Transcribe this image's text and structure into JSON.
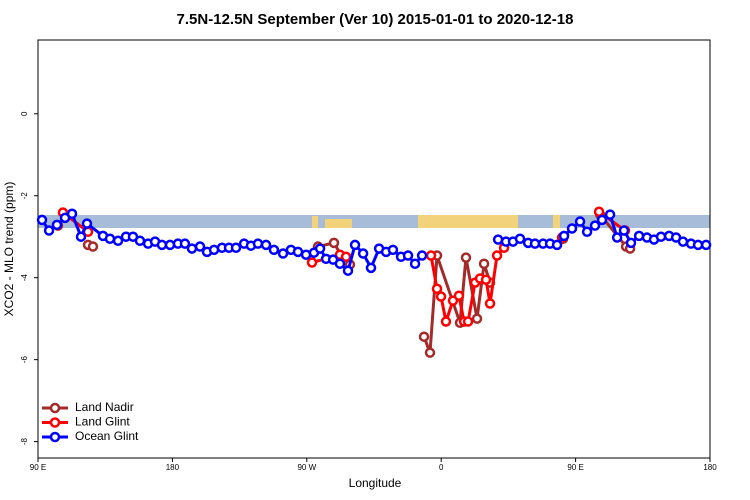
{
  "chart_data": {
    "type": "line",
    "title": "7.5N-12.5N September (Ver 10)   2015-01-01 to 2020-12-18",
    "x_label": "Longitude",
    "y_label": "XCO2 - MLO trend (ppm)",
    "xlim": [
      90,
      540
    ],
    "xticks": [
      {
        "value": 90,
        "label": "90 E"
      },
      180,
      {
        "value": 270,
        "label": "90 W"
      },
      {
        "value": 360,
        "label": "0"
      },
      {
        "value": 450,
        "label": "90 E"
      },
      {
        "value": 540,
        "label": "180"
      }
    ],
    "ylim": [
      -8.4,
      1.8
    ],
    "yticks": [
      0,
      -2,
      -4,
      -6,
      -8
    ],
    "legend": "bottom-left",
    "series": [
      {
        "name": "Land Nadir",
        "color": "#a52a2a",
        "x": [
          103.4,
          123.5,
          126.8,
          277.5,
          288.2,
          293.6,
          298.9,
          348.5,
          352.5,
          357.2,
          372.6,
          376.6,
          384.0,
          388.7,
          392.7,
          441.6,
          466.4,
          483.8,
          486.5
        ],
        "values": [
          -2.73,
          -3.2,
          -3.24,
          -3.24,
          -3.15,
          -3.49,
          -3.68,
          -5.44,
          -5.83,
          -3.46,
          -5.1,
          -3.51,
          -5.0,
          -3.66,
          -4.12,
          -3.05,
          -2.46,
          -3.24,
          -3.29
        ]
      },
      {
        "name": "Land Glint",
        "color": "#ff0000",
        "x": [
          106.7,
          123.5,
          273.5,
          292.2,
          296.3,
          353.2,
          357.2,
          359.9,
          363.2,
          367.9,
          371.9,
          375.3,
          378.0,
          382.7,
          386.0,
          390.0,
          392.7,
          397.4,
          402.1,
          440.9,
          465.7,
          483.1
        ],
        "values": [
          -2.41,
          -2.88,
          -3.63,
          -3.44,
          -3.49,
          -3.46,
          -4.27,
          -4.46,
          -5.07,
          -4.56,
          -4.44,
          -5.07,
          -5.07,
          -4.12,
          -4.02,
          -4.05,
          -4.63,
          -3.46,
          -3.27,
          -3.02,
          -2.39,
          -2.85
        ]
      },
      {
        "name": "Ocean Glint",
        "color": "#0000ff",
        "x": [
          92.7,
          97.4,
          102.7,
          108.1,
          112.8,
          118.8,
          122.8,
          133.5,
          138.2,
          143.6,
          148.9,
          153.6,
          158.3,
          163.7,
          168.4,
          173.0,
          178.4,
          183.7,
          188.4,
          193.1,
          198.5,
          203.2,
          207.9,
          213.2,
          217.9,
          222.6,
          228.0,
          232.6,
          237.3,
          242.7,
          248.0,
          254.1,
          259.4,
          264.1,
          269.5,
          274.8,
          278.9,
          282.9,
          287.6,
          292.2,
          297.6,
          302.3,
          307.7,
          313.0,
          318.4,
          323.1,
          327.7,
          333.1,
          337.8,
          342.5,
          347.2,
          398.1,
          403.4,
          408.1,
          412.8,
          418.2,
          422.8,
          428.2,
          432.9,
          437.6,
          442.3,
          447.6,
          453.0,
          457.7,
          463.0,
          467.7,
          473.1,
          477.8,
          482.4,
          487.1,
          492.5,
          497.8,
          502.5,
          507.2,
          512.6,
          517.3,
          521.9,
          527.3,
          532.0,
          537.4
        ],
        "values": [
          -2.59,
          -2.85,
          -2.71,
          -2.54,
          -2.44,
          -3.0,
          -2.68,
          -2.98,
          -3.05,
          -3.1,
          -3.0,
          -3.0,
          -3.1,
          -3.17,
          -3.12,
          -3.2,
          -3.2,
          -3.17,
          -3.17,
          -3.29,
          -3.24,
          -3.37,
          -3.32,
          -3.27,
          -3.27,
          -3.27,
          -3.17,
          -3.22,
          -3.17,
          -3.2,
          -3.32,
          -3.41,
          -3.32,
          -3.37,
          -3.44,
          -3.39,
          -3.29,
          -3.54,
          -3.56,
          -3.66,
          -3.83,
          -3.2,
          -3.41,
          -3.76,
          -3.29,
          -3.37,
          -3.32,
          -3.49,
          -3.46,
          -3.66,
          -3.46,
          -3.07,
          -3.12,
          -3.12,
          -3.05,
          -3.15,
          -3.17,
          -3.17,
          -3.17,
          -3.2,
          -2.98,
          -2.8,
          -2.63,
          -2.88,
          -2.73,
          -2.59,
          -2.46,
          -3.02,
          -2.85,
          -3.15,
          -2.98,
          -3.02,
          -3.07,
          -3.0,
          -2.98,
          -3.02,
          -3.12,
          -3.17,
          -3.2,
          -3.2
        ]
      }
    ]
  }
}
